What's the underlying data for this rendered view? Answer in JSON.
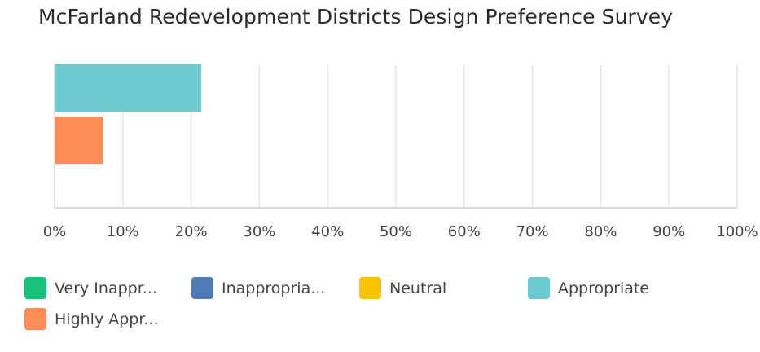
{
  "chart_data": {
    "type": "bar",
    "orientation": "horizontal",
    "title": "McFarland Redevelopment Districts Design Preference Survey",
    "xlabel": "",
    "ylabel": "",
    "xlim": [
      0,
      100
    ],
    "x_ticks": [
      "0%",
      "10%",
      "20%",
      "30%",
      "40%",
      "50%",
      "60%",
      "70%",
      "80%",
      "90%",
      "100%"
    ],
    "grid": true,
    "legend_position": "bottom",
    "series": [
      {
        "name": "Very Inappr...",
        "value": 0,
        "color": "#18c07a"
      },
      {
        "name": "Inappropria...",
        "value": 0,
        "color": "#4f7ab8"
      },
      {
        "name": "Neutral",
        "value": 0,
        "color": "#f8c300"
      },
      {
        "name": "Appropriate",
        "value": 21.5,
        "color": "#6ccbd0"
      },
      {
        "name": "Highly Appr...",
        "value": 7.1,
        "color": "#ff8c55"
      }
    ]
  }
}
